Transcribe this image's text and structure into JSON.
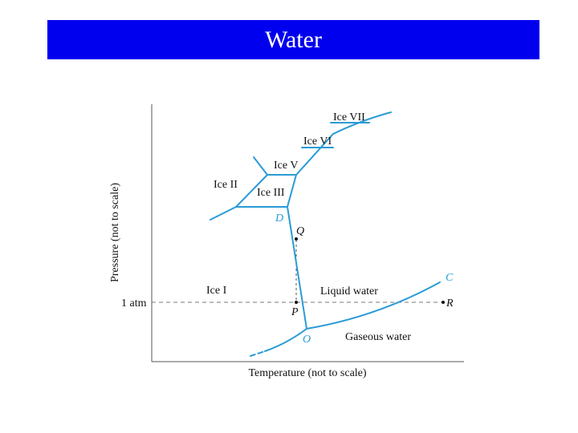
{
  "slide": {
    "title": "Water",
    "title_bg_color": "#0000EE",
    "title_text_color": "#FFFFFF"
  },
  "diagram": {
    "line_color": "#2A9BD6",
    "axes": {
      "x_label": "Temperature (not to scale)",
      "y_label": "Pressure (not to scale)",
      "y_tick": "1 atm"
    },
    "regions": {
      "ice_vii": "Ice VII",
      "ice_vi": "Ice VI",
      "ice_v": "Ice V",
      "ice_ii": "Ice II",
      "ice_iii": "Ice III",
      "ice_i": "Ice I",
      "liquid": "Liquid water",
      "gas": "Gaseous water"
    },
    "points": {
      "D": "D",
      "Q": "Q",
      "P": "P",
      "C": "C",
      "R": "R",
      "O": "O"
    }
  }
}
